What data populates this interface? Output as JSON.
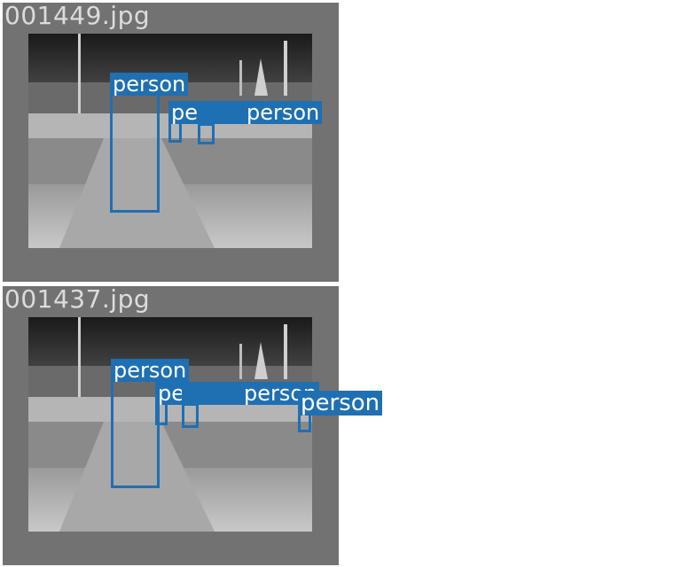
{
  "panels": [
    {
      "filename": "001449.jpg",
      "detections": [
        {
          "label": "person"
        },
        {
          "label": "person"
        },
        {
          "label": "person"
        }
      ]
    },
    {
      "filename": "001437.jpg",
      "detections": [
        {
          "label": "person"
        },
        {
          "label": "person"
        },
        {
          "label": "person"
        },
        {
          "label": "person"
        }
      ]
    }
  ],
  "colors": {
    "panel_bg": "#727272",
    "box": "#1f6fb3",
    "label_text": "#ffffff",
    "filename_text": "#dcdcdc"
  }
}
